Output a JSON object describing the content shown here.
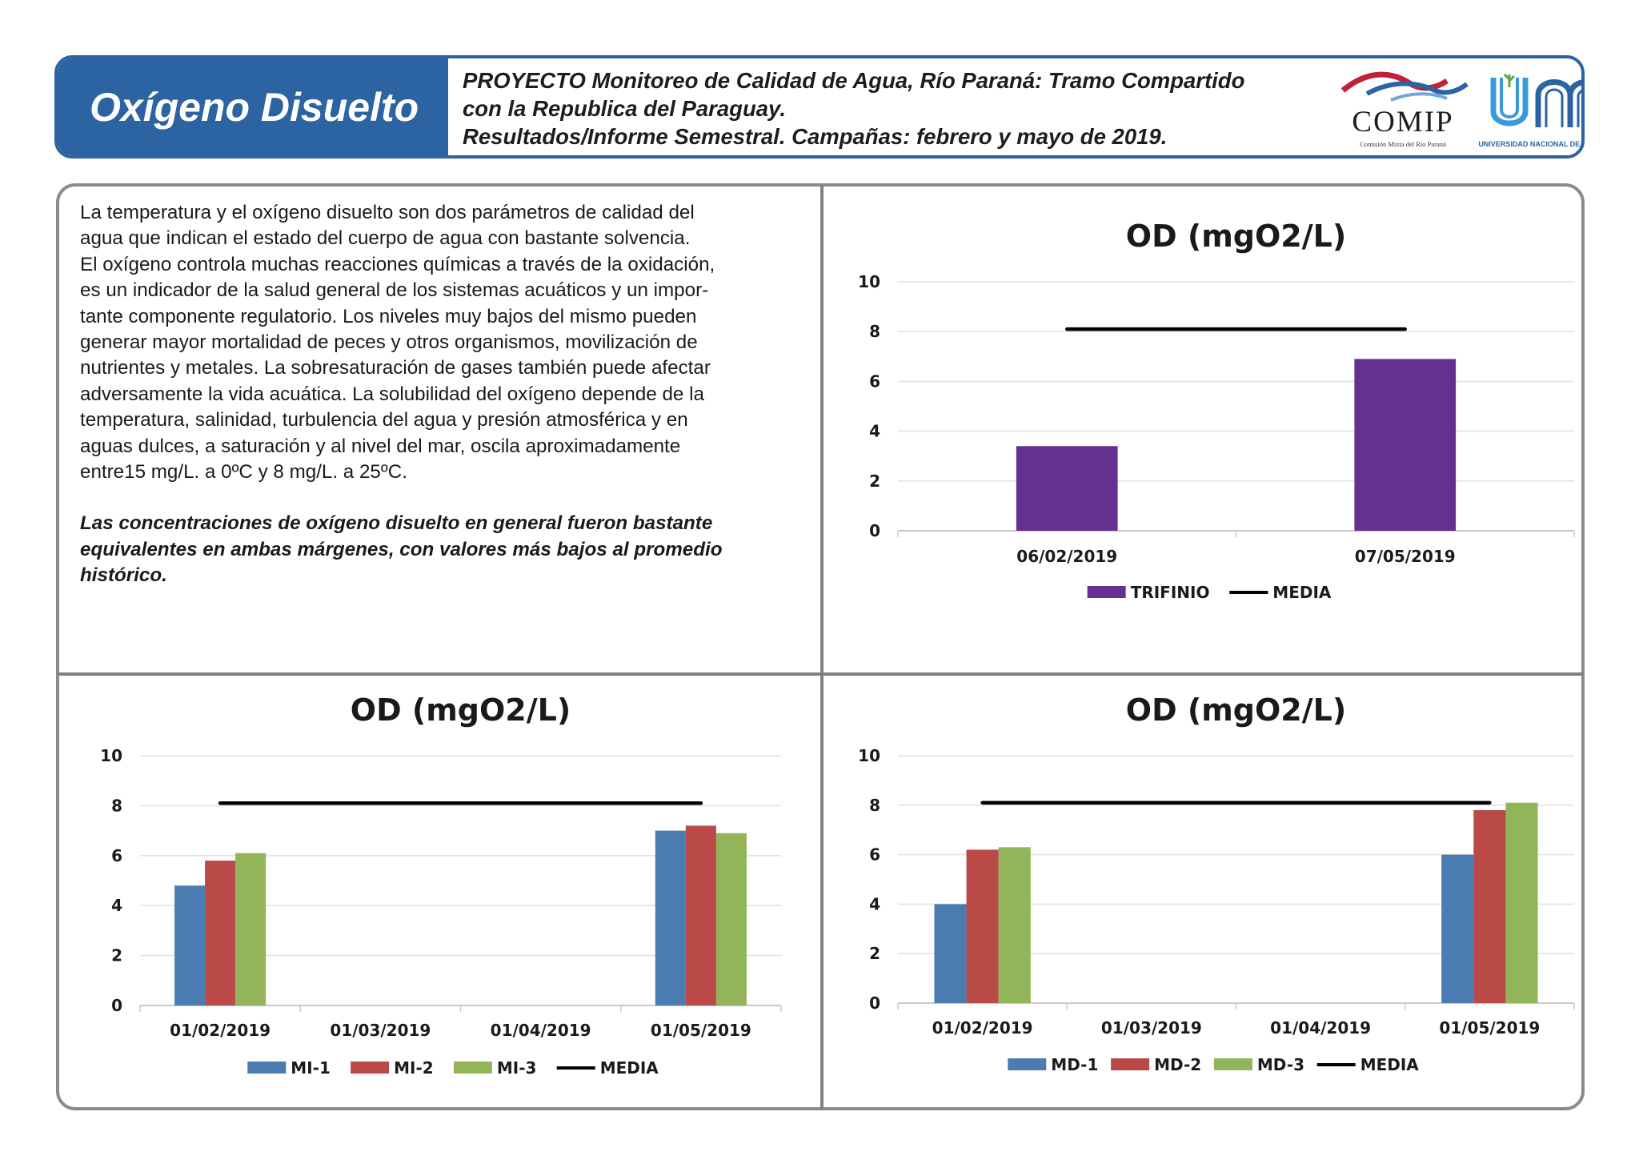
{
  "header": {
    "section_title": "Oxígeno Disuelto",
    "project_lines": [
      "PROYECTO Monitoreo de Calidad de Agua, Río Paraná: Tramo Compartido",
      "con la Republica del Paraguay.",
      "Resultados/Informe Semestral. Campañas: febrero y mayo de 2019."
    ],
    "logo_comip_text": "COMIP",
    "logo_comip_subtext": "Comisión Mixta del Río Paraná",
    "logo_unam_subtext": "UNIVERSIDAD NACIONAL DE MISIONES"
  },
  "description": {
    "lines": [
      "La temperatura y el oxígeno disuelto son dos parámetros de calidad del",
      "agua que indican el estado del cuerpo de agua con bastante solvencia.",
      "El oxígeno controla muchas reacciones químicas a través de la oxidación,",
      "es un indicador de la salud general de los sistemas acuáticos y un impor-",
      "tante componente regulatorio. Los niveles muy bajos del mismo pueden",
      "generar mayor mortalidad de peces y otros organismos, movilización de",
      "nutrientes y metales. La sobresaturación de gases también puede afectar",
      "adversamente la vida acuática. La solubilidad del oxígeno depende de la",
      "temperatura, salinidad, turbulencia del agua y presión atmosférica y en",
      "aguas dulces, a saturación y al nivel del mar, oscila aproximadamente",
      "entre15 mg/L. a 0ºC y 8 mg/L. a 25ºC."
    ],
    "conclusion_lines": [
      "Las concentraciones de oxígeno disuelto en general fueron bastante",
      "equivalentes en ambas márgenes, con valores más bajos al promedio",
      "histórico."
    ]
  },
  "colors": {
    "header_blue": "#2c63a3",
    "trifinio": "#663090",
    "series_1": "#4b7cb1",
    "series_2": "#b94a48",
    "series_3": "#93b559",
    "media": "#000000"
  },
  "chart_data": [
    {
      "id": "trifinio",
      "type": "bar",
      "title": "OD (mgO2/L)",
      "categories": [
        "06/02/2019",
        "07/05/2019"
      ],
      "series": [
        {
          "name": "TRIFINIO",
          "values": [
            3.4,
            6.9
          ],
          "color": "#663090"
        }
      ],
      "media": {
        "name": "MEDIA",
        "value": 8.1
      },
      "ylim": [
        0,
        10
      ],
      "yticks": [
        0,
        2,
        4,
        6,
        8,
        10
      ],
      "grid": true,
      "legend": "bottom"
    },
    {
      "id": "margen-izquierda",
      "type": "bar",
      "title": "OD (mgO2/L)",
      "categories": [
        "01/02/2019",
        "01/03/2019",
        "01/04/2019",
        "01/05/2019"
      ],
      "series": [
        {
          "name": "MI-1",
          "values": [
            4.8,
            null,
            null,
            7.0
          ],
          "color": "#4b7cb1"
        },
        {
          "name": "MI-2",
          "values": [
            5.8,
            null,
            null,
            7.2
          ],
          "color": "#b94a48"
        },
        {
          "name": "MI-3",
          "values": [
            6.1,
            null,
            null,
            6.9
          ],
          "color": "#93b559"
        }
      ],
      "media": {
        "name": "MEDIA",
        "value": 8.1
      },
      "ylim": [
        0,
        10
      ],
      "yticks": [
        0,
        2,
        4,
        6,
        8,
        10
      ],
      "grid": true,
      "legend": "bottom"
    },
    {
      "id": "margen-derecha",
      "type": "bar",
      "title": "OD (mgO2/L)",
      "categories": [
        "01/02/2019",
        "01/03/2019",
        "01/04/2019",
        "01/05/2019"
      ],
      "series": [
        {
          "name": "MD-1",
          "values": [
            4.0,
            null,
            null,
            6.0
          ],
          "color": "#4b7cb1"
        },
        {
          "name": "MD-2",
          "values": [
            6.2,
            null,
            null,
            7.8
          ],
          "color": "#b94a48"
        },
        {
          "name": "MD-3",
          "values": [
            6.3,
            null,
            null,
            8.1
          ],
          "color": "#93b559"
        }
      ],
      "media": {
        "name": "MEDIA",
        "value": 8.1
      },
      "ylim": [
        0,
        10
      ],
      "yticks": [
        0,
        2,
        4,
        6,
        8,
        10
      ],
      "grid": true,
      "legend": "bottom"
    }
  ]
}
